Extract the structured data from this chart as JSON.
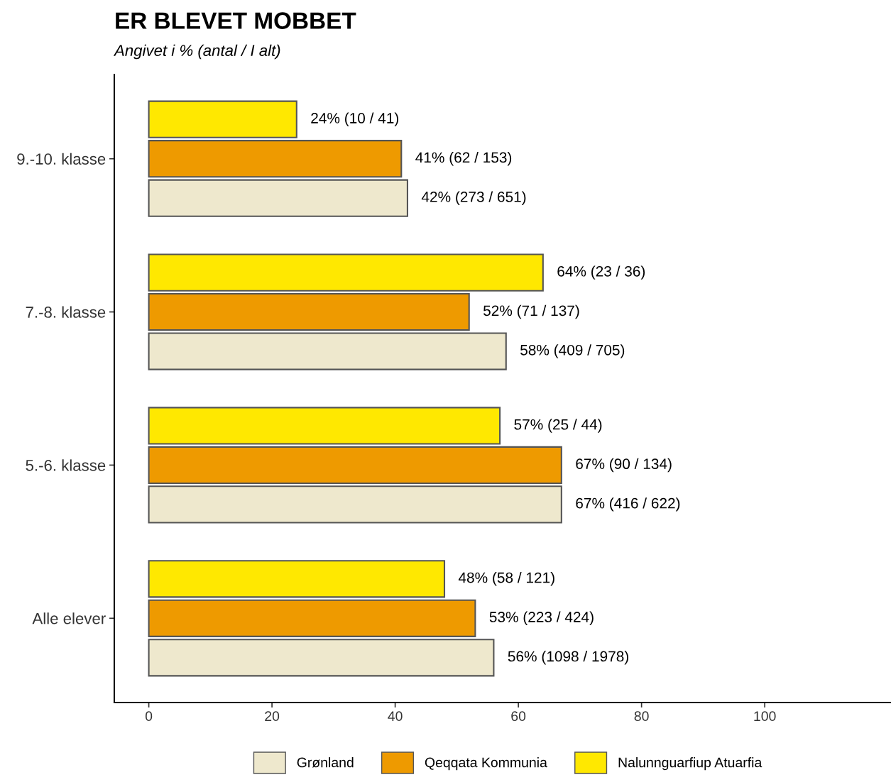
{
  "chart_data": {
    "type": "bar",
    "orientation": "horizontal",
    "title": "ER BLEVET MOBBET",
    "subtitle": "Angivet i % (antal / I alt)",
    "categories": [
      "9.-10. klasse",
      "7.-8. klasse",
      "5.-6. klasse",
      "Alle elever"
    ],
    "series": [
      {
        "name": "Grønland",
        "color": "#eee8cd",
        "values": [
          42,
          58,
          67,
          56
        ],
        "value_labels": [
          "42% (273 / 651)",
          "58% (409 / 705)",
          "67% (416 / 622)",
          "56% (1098 / 1978)"
        ]
      },
      {
        "name": "Qeqqata Kommunia",
        "color": "#ee9a00",
        "values": [
          41,
          52,
          67,
          53
        ],
        "value_labels": [
          "41% (62 / 153)",
          "52% (71 / 137)",
          "67% (90 / 134)",
          "53% (223 / 424)"
        ]
      },
      {
        "name": "Nalunnguarfiup Atuarfia",
        "color": "#ffe800",
        "values": [
          24,
          64,
          57,
          48
        ],
        "value_labels": [
          "24% (10 / 41)",
          "64% (23 / 36)",
          "57% (25 / 44)",
          "48% (58 / 121)"
        ]
      }
    ],
    "xlim": [
      -5.6,
      120.5
    ],
    "xticks": [
      0,
      20,
      40,
      60,
      80,
      100
    ],
    "grid": false,
    "legend": "bottom"
  }
}
